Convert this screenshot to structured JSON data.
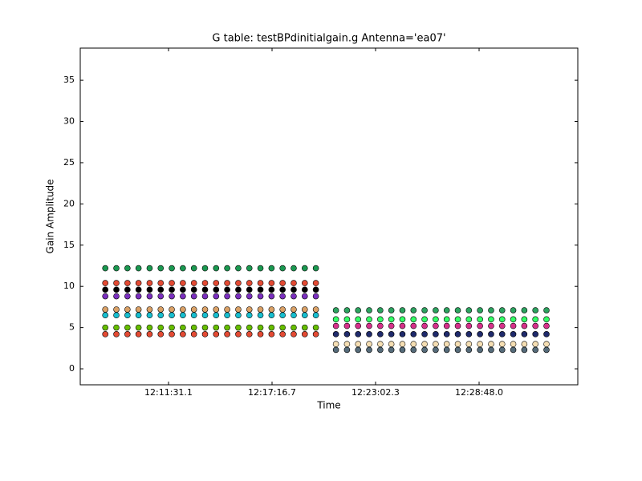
{
  "chart_data": {
    "type": "scatter",
    "title": "G table: testBPdinitialgain.g      Antenna='ea07'",
    "xlabel": "Time",
    "ylabel": "Gain Amplitude",
    "xlim": [
      43596.4,
      45257.5
    ],
    "xticks": [
      {
        "value": 43891.1,
        "label": "12:11:31.1"
      },
      {
        "value": 44236.7,
        "label": "12:17:16.7"
      },
      {
        "value": 44582.3,
        "label": "12:23:02.3"
      },
      {
        "value": 44928.0,
        "label": "12:28:48.0"
      }
    ],
    "ylim": [
      -1.94,
      38.9
    ],
    "yticks": [
      0,
      5,
      10,
      15,
      20,
      25,
      30,
      35
    ],
    "series": [
      {
        "color": "#1a9850",
        "x": [
          43680,
          43717,
          43754,
          43791,
          43828,
          43865,
          43902,
          43939,
          43976,
          44013,
          44050,
          44087,
          44124,
          44161,
          44198,
          44235,
          44272,
          44309,
          44346,
          44383
        ],
        "values": [
          12.2,
          12.2,
          12.2,
          12.2,
          12.2,
          12.2,
          12.2,
          12.2,
          12.2,
          12.2,
          12.2,
          12.2,
          12.2,
          12.2,
          12.2,
          12.2,
          12.2,
          12.2,
          12.2,
          12.2
        ]
      },
      {
        "color": "#e34a33",
        "x": [
          43680,
          43717,
          43754,
          43791,
          43828,
          43865,
          43902,
          43939,
          43976,
          44013,
          44050,
          44087,
          44124,
          44161,
          44198,
          44235,
          44272,
          44309,
          44346,
          44383
        ],
        "values": [
          10.4,
          10.4,
          10.4,
          10.4,
          10.4,
          10.4,
          10.4,
          10.4,
          10.4,
          10.4,
          10.4,
          10.4,
          10.4,
          10.4,
          10.4,
          10.4,
          10.4,
          10.4,
          10.4,
          10.4
        ]
      },
      {
        "color": "#000000",
        "x": [
          43680,
          43717,
          43754,
          43791,
          43828,
          43865,
          43902,
          43939,
          43976,
          44013,
          44050,
          44087,
          44124,
          44161,
          44198,
          44235,
          44272,
          44309,
          44346,
          44383
        ],
        "values": [
          9.6,
          9.6,
          9.6,
          9.6,
          9.6,
          9.6,
          9.6,
          9.6,
          9.6,
          9.6,
          9.6,
          9.6,
          9.6,
          9.6,
          9.6,
          9.6,
          9.6,
          9.6,
          9.6,
          9.6
        ]
      },
      {
        "color": "#7b2fbf",
        "x": [
          43680,
          43717,
          43754,
          43791,
          43828,
          43865,
          43902,
          43939,
          43976,
          44013,
          44050,
          44087,
          44124,
          44161,
          44198,
          44235,
          44272,
          44309,
          44346,
          44383
        ],
        "values": [
          8.8,
          8.8,
          8.8,
          8.8,
          8.8,
          8.8,
          8.8,
          8.8,
          8.8,
          8.8,
          8.8,
          8.8,
          8.8,
          8.8,
          8.8,
          8.8,
          8.8,
          8.8,
          8.8,
          8.8
        ]
      },
      {
        "color": "#d9a066",
        "x": [
          43680,
          43717,
          43754,
          43791,
          43828,
          43865,
          43902,
          43939,
          43976,
          44013,
          44050,
          44087,
          44124,
          44161,
          44198,
          44235,
          44272,
          44309,
          44346,
          44383
        ],
        "values": [
          7.2,
          7.2,
          7.2,
          7.2,
          7.2,
          7.2,
          7.2,
          7.2,
          7.2,
          7.2,
          7.2,
          7.2,
          7.2,
          7.2,
          7.2,
          7.2,
          7.2,
          7.2,
          7.2,
          7.2
        ]
      },
      {
        "color": "#17becf",
        "x": [
          43680,
          43717,
          43754,
          43791,
          43828,
          43865,
          43902,
          43939,
          43976,
          44013,
          44050,
          44087,
          44124,
          44161,
          44198,
          44235,
          44272,
          44309,
          44346,
          44383
        ],
        "values": [
          6.5,
          6.5,
          6.5,
          6.5,
          6.5,
          6.5,
          6.5,
          6.5,
          6.5,
          6.5,
          6.5,
          6.5,
          6.5,
          6.5,
          6.5,
          6.5,
          6.5,
          6.5,
          6.5,
          6.5
        ]
      },
      {
        "color": "#66bd00",
        "x": [
          43680,
          43717,
          43754,
          43791,
          43828,
          43865,
          43902,
          43939,
          43976,
          44013,
          44050,
          44087,
          44124,
          44161,
          44198,
          44235,
          44272,
          44309,
          44346,
          44383
        ],
        "values": [
          5.0,
          5.0,
          5.0,
          5.0,
          5.0,
          5.0,
          5.0,
          5.0,
          5.0,
          5.0,
          5.0,
          5.0,
          5.0,
          5.0,
          5.0,
          5.0,
          5.0,
          5.0,
          5.0,
          5.0
        ]
      },
      {
        "color": "#e34a33",
        "x": [
          43680,
          43717,
          43754,
          43791,
          43828,
          43865,
          43902,
          43939,
          43976,
          44013,
          44050,
          44087,
          44124,
          44161,
          44198,
          44235,
          44272,
          44309,
          44346,
          44383
        ],
        "values": [
          4.2,
          4.2,
          4.2,
          4.2,
          4.2,
          4.2,
          4.2,
          4.2,
          4.2,
          4.2,
          4.2,
          4.2,
          4.2,
          4.2,
          4.2,
          4.2,
          4.2,
          4.2,
          4.2,
          4.2
        ]
      },
      {
        "color": "#2ca25f",
        "x": [
          44450,
          44487,
          44524,
          44561,
          44598,
          44635,
          44672,
          44709,
          44746,
          44783,
          44820,
          44857,
          44894,
          44931,
          44968,
          45005,
          45042,
          45079,
          45116,
          45153
        ],
        "values": [
          7.1,
          7.1,
          7.1,
          7.1,
          7.1,
          7.1,
          7.1,
          7.1,
          7.1,
          7.1,
          7.1,
          7.1,
          7.1,
          7.1,
          7.1,
          7.1,
          7.1,
          7.1,
          7.1,
          7.1
        ]
      },
      {
        "color": "#33ff66",
        "x": [
          44450,
          44487,
          44524,
          44561,
          44598,
          44635,
          44672,
          44709,
          44746,
          44783,
          44820,
          44857,
          44894,
          44931,
          44968,
          45005,
          45042,
          45079,
          45116,
          45153
        ],
        "values": [
          6.0,
          6.0,
          6.0,
          6.0,
          6.0,
          6.0,
          6.0,
          6.0,
          6.0,
          6.0,
          6.0,
          6.0,
          6.0,
          6.0,
          6.0,
          6.0,
          6.0,
          6.0,
          6.0,
          6.0
        ]
      },
      {
        "color": "#d6308a",
        "x": [
          44450,
          44487,
          44524,
          44561,
          44598,
          44635,
          44672,
          44709,
          44746,
          44783,
          44820,
          44857,
          44894,
          44931,
          44968,
          45005,
          45042,
          45079,
          45116,
          45153
        ],
        "values": [
          5.2,
          5.2,
          5.2,
          5.2,
          5.2,
          5.2,
          5.2,
          5.2,
          5.2,
          5.2,
          5.2,
          5.2,
          5.2,
          5.2,
          5.2,
          5.2,
          5.2,
          5.2,
          5.2,
          5.2
        ]
      },
      {
        "color": "#1f2a6b",
        "x": [
          44450,
          44487,
          44524,
          44561,
          44598,
          44635,
          44672,
          44709,
          44746,
          44783,
          44820,
          44857,
          44894,
          44931,
          44968,
          45005,
          45042,
          45079,
          45116,
          45153
        ],
        "values": [
          4.2,
          4.2,
          4.2,
          4.2,
          4.2,
          4.2,
          4.2,
          4.2,
          4.2,
          4.2,
          4.2,
          4.2,
          4.2,
          4.2,
          4.2,
          4.2,
          4.2,
          4.2,
          4.2,
          4.2
        ]
      },
      {
        "color": "#f5deb3",
        "x": [
          44450,
          44487,
          44524,
          44561,
          44598,
          44635,
          44672,
          44709,
          44746,
          44783,
          44820,
          44857,
          44894,
          44931,
          44968,
          45005,
          45042,
          45079,
          45116,
          45153
        ],
        "values": [
          3.0,
          3.0,
          3.0,
          3.0,
          3.0,
          3.0,
          3.0,
          3.0,
          3.0,
          3.0,
          3.0,
          3.0,
          3.0,
          3.0,
          3.0,
          3.0,
          3.0,
          3.0,
          3.0,
          3.0
        ]
      },
      {
        "color": "#556b7a",
        "x": [
          44450,
          44487,
          44524,
          44561,
          44598,
          44635,
          44672,
          44709,
          44746,
          44783,
          44820,
          44857,
          44894,
          44931,
          44968,
          45005,
          45042,
          45079,
          45116,
          45153
        ],
        "values": [
          2.3,
          2.3,
          2.3,
          2.3,
          2.3,
          2.3,
          2.3,
          2.3,
          2.3,
          2.3,
          2.3,
          2.3,
          2.3,
          2.3,
          2.3,
          2.3,
          2.3,
          2.3,
          2.3,
          2.3
        ]
      }
    ]
  }
}
